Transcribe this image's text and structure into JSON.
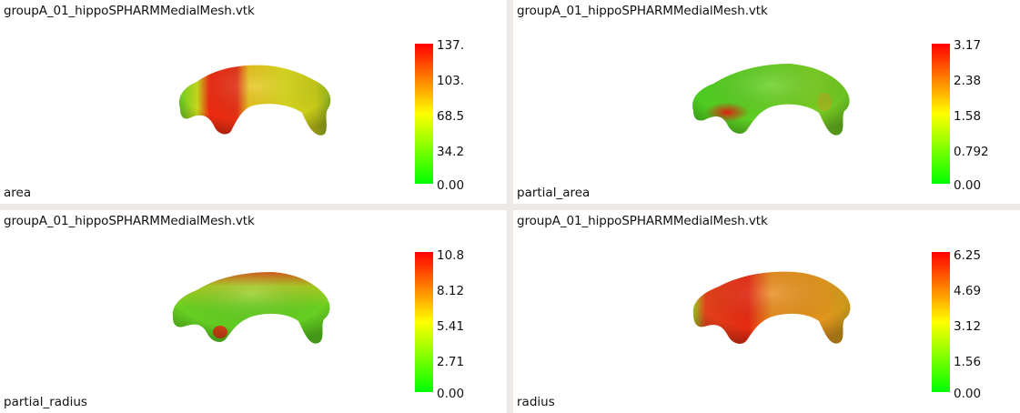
{
  "views": [
    {
      "file": "groupA_01_hippoSPHARMMedialMesh.vtk",
      "scalar": "area",
      "ticks": [
        "137.",
        "103.",
        "68.5",
        "34.2",
        "0.00"
      ]
    },
    {
      "file": "groupA_01_hippoSPHARMMedialMesh.vtk",
      "scalar": "partial_area",
      "ticks": [
        "3.17",
        "2.38",
        "1.58",
        "0.792",
        "0.00"
      ]
    },
    {
      "file": "groupA_01_hippoSPHARMMedialMesh.vtk",
      "scalar": "partial_radius",
      "ticks": [
        "10.8",
        "8.12",
        "5.41",
        "2.71",
        "0.00"
      ]
    },
    {
      "file": "groupA_01_hippoSPHARMMedialMesh.vtk",
      "scalar": "radius",
      "ticks": [
        "6.25",
        "4.69",
        "3.12",
        "1.56",
        "0.00"
      ]
    }
  ],
  "colormap": {
    "low": "#00ff00",
    "mid": "#ffff00",
    "high": "#ff0000"
  }
}
